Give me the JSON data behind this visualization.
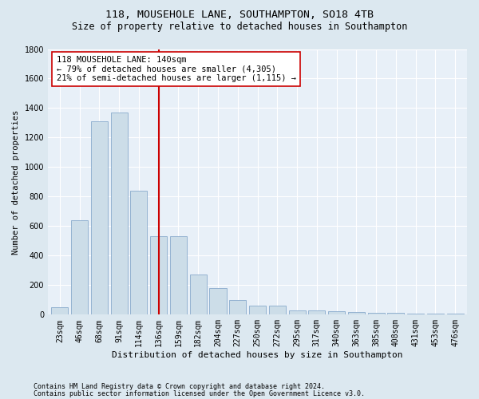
{
  "title": "118, MOUSEHOLE LANE, SOUTHAMPTON, SO18 4TB",
  "subtitle": "Size of property relative to detached houses in Southampton",
  "xlabel": "Distribution of detached houses by size in Southampton",
  "ylabel": "Number of detached properties",
  "categories": [
    "23sqm",
    "46sqm",
    "68sqm",
    "91sqm",
    "114sqm",
    "136sqm",
    "159sqm",
    "182sqm",
    "204sqm",
    "227sqm",
    "250sqm",
    "272sqm",
    "295sqm",
    "317sqm",
    "340sqm",
    "363sqm",
    "385sqm",
    "408sqm",
    "431sqm",
    "453sqm",
    "476sqm"
  ],
  "values": [
    50,
    640,
    1310,
    1370,
    840,
    530,
    530,
    270,
    180,
    100,
    60,
    60,
    30,
    30,
    25,
    20,
    15,
    10,
    5,
    5,
    5
  ],
  "bar_color": "#ccdde8",
  "bar_edge_color": "#88aacc",
  "vline_x_index": 5,
  "vline_color": "#cc0000",
  "annotation_line1": "118 MOUSEHOLE LANE: 140sqm",
  "annotation_line2": "← 79% of detached houses are smaller (4,305)",
  "annotation_line3": "21% of semi-detached houses are larger (1,115) →",
  "annotation_box_color": "#ffffff",
  "annotation_box_edge_color": "#cc0000",
  "ylim": [
    0,
    1800
  ],
  "yticks": [
    0,
    200,
    400,
    600,
    800,
    1000,
    1200,
    1400,
    1600,
    1800
  ],
  "footer1": "Contains HM Land Registry data © Crown copyright and database right 2024.",
  "footer2": "Contains public sector information licensed under the Open Government Licence v3.0.",
  "bg_color": "#dce8f0",
  "plot_bg_color": "#e8f0f8",
  "title_fontsize": 9.5,
  "subtitle_fontsize": 8.5,
  "xlabel_fontsize": 8,
  "ylabel_fontsize": 7.5,
  "tick_fontsize": 7,
  "footer_fontsize": 6,
  "annotation_fontsize": 7.5
}
